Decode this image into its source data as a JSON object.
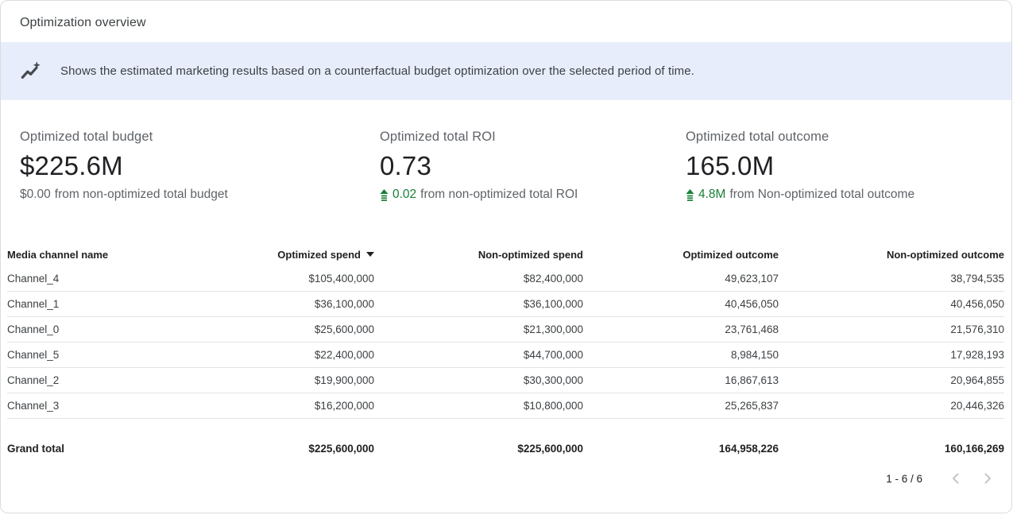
{
  "header": {
    "title": "Optimization overview"
  },
  "banner": {
    "icon": "insights-icon",
    "text": "Shows the estimated marketing results based on a counterfactual budget optimization over the selected period of time."
  },
  "kpis": [
    {
      "label": "Optimized total budget",
      "value": "$225.6M",
      "delta": {
        "positive": false,
        "amount": "$0.00",
        "text": "from non-optimized total budget"
      }
    },
    {
      "label": "Optimized total ROI",
      "value": "0.73",
      "delta": {
        "positive": true,
        "amount": "0.02",
        "text": "from non-optimized total ROI"
      }
    },
    {
      "label": "Optimized total outcome",
      "value": "165.0M",
      "delta": {
        "positive": true,
        "amount": "4.8M",
        "text": "from Non-optimized total outcome"
      }
    }
  ],
  "table": {
    "columns": [
      "Media channel name",
      "Optimized spend",
      "Non-optimized spend",
      "Optimized outcome",
      "Non-optimized outcome"
    ],
    "sort": {
      "column": "Optimized spend",
      "direction": "desc"
    },
    "rows": [
      [
        "Channel_4",
        "$105,400,000",
        "$82,400,000",
        "49,623,107",
        "38,794,535"
      ],
      [
        "Channel_1",
        "$36,100,000",
        "$36,100,000",
        "40,456,050",
        "40,456,050"
      ],
      [
        "Channel_0",
        "$25,600,000",
        "$21,300,000",
        "23,761,468",
        "21,576,310"
      ],
      [
        "Channel_5",
        "$22,400,000",
        "$44,700,000",
        "8,984,150",
        "17,928,193"
      ],
      [
        "Channel_2",
        "$19,900,000",
        "$30,300,000",
        "16,867,613",
        "20,964,855"
      ],
      [
        "Channel_3",
        "$16,200,000",
        "$10,800,000",
        "25,265,837",
        "20,446,326"
      ]
    ],
    "grand_total": [
      "Grand total",
      "$225,600,000",
      "$225,600,000",
      "164,958,226",
      "160,166,269"
    ],
    "pagination": {
      "label": "1 - 6 / 6"
    }
  },
  "colors": {
    "banner_bg": "#e8edfb",
    "positive_green": "#188038",
    "muted_text": "#5f6368",
    "primary_text": "#202124",
    "border": "#dadce0"
  }
}
